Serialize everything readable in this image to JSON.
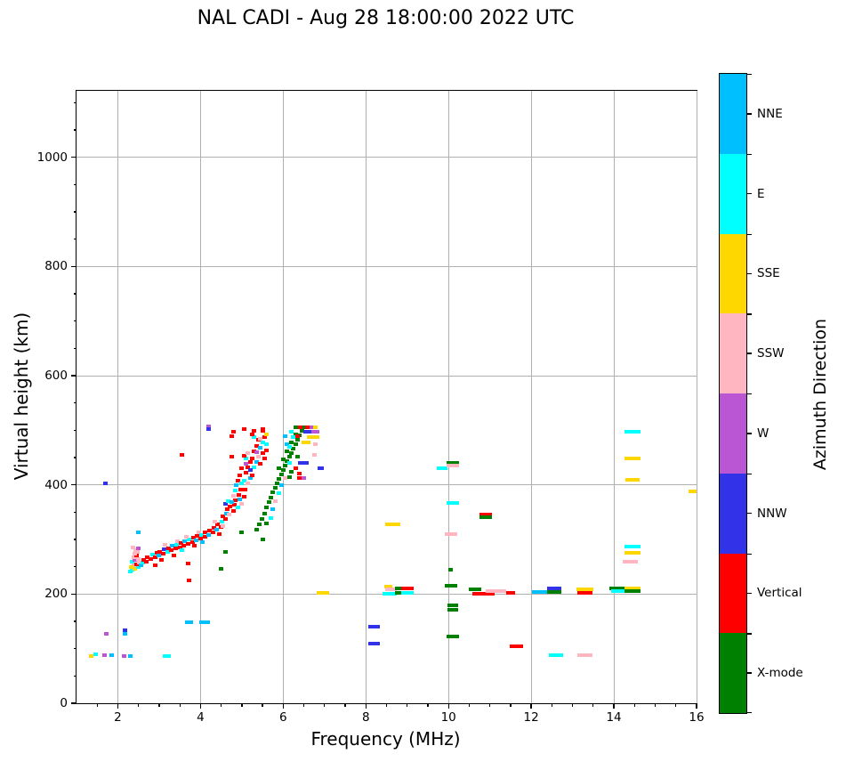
{
  "title": "NAL CADI - Aug 28 18:00:00 2022 UTC",
  "chart_data": {
    "type": "scatter",
    "title": "NAL CADI - Aug 28 18:00:00 2022 UTC",
    "xlabel": "Frequency (MHz)",
    "ylabel": "Virtual height (km)",
    "xlim": [
      1,
      16
    ],
    "ylim": [
      0,
      1122
    ],
    "x_ticks": [
      2,
      4,
      6,
      8,
      10,
      12,
      14,
      16
    ],
    "y_ticks": [
      0,
      200,
      400,
      600,
      800,
      1000
    ],
    "x_minor_step": 0.5,
    "y_minor_step": 50,
    "grid": true,
    "grid_color": "#b0b0b0",
    "marker": "small horizontal rectangle",
    "colorbar": {
      "label": "Azimuth Direction",
      "categories_top_to_bottom": [
        {
          "code": "NNE",
          "label": "NNE"
        },
        {
          "code": "E",
          "label": "E"
        },
        {
          "code": "SSE",
          "label": "SSE"
        },
        {
          "code": "SSW",
          "label": "SSW"
        },
        {
          "code": "W",
          "label": "W"
        },
        {
          "code": "NNW",
          "label": "NNW"
        },
        {
          "code": "V",
          "label": "Vertical"
        },
        {
          "code": "X",
          "label": "X-mode"
        }
      ]
    },
    "colors": {
      "NNE": "#00BFFF",
      "E": "#00FFFF",
      "SSE": "#FFD700",
      "SSW": "#FFB6C1",
      "W": "#BA55D3",
      "NNW": "#3232E8",
      "V": "#FF0000",
      "X": "#008000"
    },
    "point_format": "[frequency_MHz, virtual_height_km, direction_code, optional_width_MHz]",
    "points": [
      [
        1.35,
        87,
        "SSE"
      ],
      [
        1.46,
        90,
        "E"
      ],
      [
        1.67,
        88,
        "W"
      ],
      [
        1.85,
        88,
        "NNE"
      ],
      [
        1.72,
        128,
        "W"
      ],
      [
        2.17,
        134,
        "NNW"
      ],
      [
        2.17,
        127,
        "NNE"
      ],
      [
        2.15,
        87,
        "W"
      ],
      [
        2.3,
        86,
        "NNE"
      ],
      [
        3.18,
        86,
        "E",
        0.2
      ],
      [
        3.72,
        148,
        "NNE",
        0.2
      ],
      [
        4.1,
        148,
        "NNE",
        0.25
      ],
      [
        1.7,
        402,
        "NNW"
      ],
      [
        2.5,
        313,
        "NNE"
      ],
      [
        2.35,
        244,
        "E"
      ],
      [
        2.42,
        247,
        "SSE"
      ],
      [
        2.5,
        250,
        "E"
      ],
      [
        2.38,
        252,
        "SSW"
      ],
      [
        2.45,
        255,
        "V"
      ],
      [
        2.52,
        257,
        "SSW"
      ],
      [
        2.35,
        259,
        "E"
      ],
      [
        2.42,
        262,
        "W"
      ],
      [
        2.5,
        264,
        "SSW"
      ],
      [
        2.38,
        267,
        "SSW"
      ],
      [
        2.45,
        270,
        "V"
      ],
      [
        2.4,
        274,
        "SSW"
      ],
      [
        2.48,
        277,
        "SSW"
      ],
      [
        2.43,
        281,
        "SSW"
      ],
      [
        2.5,
        283,
        "W"
      ],
      [
        2.37,
        285,
        "SSW"
      ],
      [
        2.55,
        252,
        "NNE"
      ],
      [
        2.6,
        258,
        "E"
      ],
      [
        2.33,
        249,
        "SSE"
      ],
      [
        2.3,
        242,
        "E"
      ],
      [
        2.62,
        262,
        "V"
      ],
      [
        2.7,
        260,
        "V"
      ],
      [
        2.72,
        268,
        "V"
      ],
      [
        2.8,
        265,
        "V"
      ],
      [
        2.85,
        272,
        "E"
      ],
      [
        2.9,
        268,
        "V"
      ],
      [
        2.95,
        275,
        "V"
      ],
      [
        3.0,
        270,
        "NNE"
      ],
      [
        3.02,
        278,
        "V"
      ],
      [
        3.1,
        274,
        "V"
      ],
      [
        3.12,
        282,
        "NNW"
      ],
      [
        3.2,
        277,
        "E"
      ],
      [
        3.22,
        284,
        "V"
      ],
      [
        3.3,
        280,
        "V"
      ],
      [
        3.32,
        288,
        "NNE"
      ],
      [
        3.4,
        283,
        "V"
      ],
      [
        3.42,
        291,
        "E"
      ],
      [
        3.45,
        297,
        "SSW"
      ],
      [
        3.5,
        286,
        "V"
      ],
      [
        3.52,
        293,
        "V"
      ],
      [
        3.6,
        289,
        "V"
      ],
      [
        3.62,
        297,
        "NNE"
      ],
      [
        3.7,
        292,
        "V"
      ],
      [
        3.72,
        300,
        "E"
      ],
      [
        3.8,
        295,
        "V"
      ],
      [
        3.82,
        303,
        "V"
      ],
      [
        3.9,
        298,
        "NNE"
      ],
      [
        3.92,
        306,
        "V"
      ],
      [
        3.95,
        313,
        "SSW"
      ],
      [
        4.0,
        301,
        "V"
      ],
      [
        4.02,
        309,
        "E"
      ],
      [
        4.1,
        305,
        "V"
      ],
      [
        4.12,
        313,
        "V"
      ],
      [
        4.2,
        309,
        "NNE"
      ],
      [
        4.22,
        317,
        "V"
      ],
      [
        2.9,
        253,
        "V"
      ],
      [
        3.7,
        256,
        "V"
      ],
      [
        3.73,
        225,
        "V"
      ],
      [
        4.5,
        246,
        "X"
      ],
      [
        4.6,
        278,
        "X"
      ],
      [
        3.05,
        262,
        "V"
      ],
      [
        3.35,
        270,
        "V"
      ],
      [
        3.55,
        280,
        "E"
      ],
      [
        3.85,
        288,
        "V"
      ],
      [
        4.05,
        295,
        "NNE"
      ],
      [
        3.15,
        290,
        "SSW"
      ],
      [
        3.65,
        305,
        "SSW"
      ],
      [
        4.3,
        313,
        "V"
      ],
      [
        4.32,
        322,
        "V"
      ],
      [
        4.4,
        318,
        "NNE"
      ],
      [
        4.42,
        327,
        "V"
      ],
      [
        4.35,
        333,
        "SSW"
      ],
      [
        4.5,
        323,
        "V"
      ],
      [
        4.52,
        332,
        "E"
      ],
      [
        4.55,
        342,
        "V"
      ],
      [
        4.6,
        337,
        "V"
      ],
      [
        4.62,
        348,
        "NNE"
      ],
      [
        4.65,
        355,
        "V"
      ],
      [
        4.7,
        345,
        "SSW"
      ],
      [
        4.72,
        360,
        "V"
      ],
      [
        4.6,
        365,
        "NNW"
      ],
      [
        4.68,
        370,
        "E"
      ],
      [
        4.8,
        352,
        "V"
      ],
      [
        4.82,
        363,
        "V"
      ],
      [
        4.85,
        372,
        "V"
      ],
      [
        4.9,
        358,
        "E"
      ],
      [
        4.92,
        382,
        "V"
      ],
      [
        4.95,
        373,
        "NNE"
      ],
      [
        5.0,
        366,
        "SSW"
      ],
      [
        4.97,
        392,
        "V"
      ],
      [
        4.87,
        400,
        "NNE"
      ],
      [
        4.8,
        380,
        "SSW"
      ],
      [
        4.9,
        408,
        "V"
      ],
      [
        5.0,
        403,
        "E"
      ],
      [
        4.95,
        417,
        "V"
      ],
      [
        5.05,
        378,
        "V"
      ],
      [
        5.08,
        392,
        "V"
      ],
      [
        5.05,
        408,
        "E"
      ],
      [
        5.1,
        422,
        "V"
      ],
      [
        5.15,
        403,
        "SSW"
      ],
      [
        5.15,
        432,
        "V"
      ],
      [
        5.2,
        413,
        "NNE"
      ],
      [
        5.2,
        442,
        "V"
      ],
      [
        5.1,
        448,
        "E"
      ],
      [
        5.05,
        453,
        "V"
      ],
      [
        5.15,
        458,
        "SSW"
      ],
      [
        5.25,
        418,
        "V"
      ],
      [
        5.3,
        432,
        "E"
      ],
      [
        5.25,
        448,
        "V"
      ],
      [
        5.3,
        462,
        "V"
      ],
      [
        5.35,
        442,
        "NNE"
      ],
      [
        5.35,
        472,
        "V"
      ],
      [
        5.4,
        452,
        "SSW"
      ],
      [
        5.4,
        482,
        "V"
      ],
      [
        5.3,
        488,
        "E"
      ],
      [
        5.25,
        493,
        "V"
      ],
      [
        5.45,
        438,
        "V"
      ],
      [
        5.5,
        458,
        "V"
      ],
      [
        5.45,
        468,
        "NNE"
      ],
      [
        5.5,
        478,
        "E"
      ],
      [
        5.55,
        448,
        "V"
      ],
      [
        5.55,
        488,
        "V"
      ],
      [
        5.5,
        499,
        "V"
      ],
      [
        5.6,
        463,
        "V"
      ],
      [
        5.6,
        492,
        "SSE"
      ],
      [
        4.75,
        452,
        "V"
      ],
      [
        3.55,
        455,
        "V"
      ],
      [
        4.2,
        507,
        "W"
      ],
      [
        4.2,
        502,
        "NNW"
      ],
      [
        4.75,
        490,
        "V"
      ],
      [
        4.8,
        498,
        "V"
      ],
      [
        5.05,
        502,
        "V"
      ],
      [
        5.3,
        499,
        "V"
      ],
      [
        5.5,
        502,
        "V"
      ],
      [
        5.0,
        313,
        "X"
      ],
      [
        4.45,
        310,
        "V"
      ],
      [
        4.55,
        325,
        "SSW"
      ],
      [
        4.75,
        368,
        "NNE"
      ],
      [
        4.85,
        390,
        "E"
      ],
      [
        5.0,
        430,
        "V"
      ],
      [
        5.1,
        438,
        "W"
      ],
      [
        5.2,
        428,
        "NNW"
      ],
      [
        5.35,
        460,
        "W"
      ],
      [
        5.45,
        485,
        "SSW"
      ],
      [
        5.6,
        475,
        "E"
      ],
      [
        5.35,
        318,
        "X"
      ],
      [
        5.42,
        328,
        "X"
      ],
      [
        5.48,
        338,
        "X"
      ],
      [
        5.55,
        348,
        "X"
      ],
      [
        5.6,
        358,
        "X"
      ],
      [
        5.65,
        368,
        "X"
      ],
      [
        5.7,
        377,
        "X"
      ],
      [
        5.75,
        386,
        "X"
      ],
      [
        5.8,
        395,
        "X"
      ],
      [
        5.85,
        403,
        "X"
      ],
      [
        5.9,
        411,
        "X"
      ],
      [
        5.95,
        419,
        "X"
      ],
      [
        6.0,
        427,
        "X"
      ],
      [
        6.05,
        435,
        "X"
      ],
      [
        6.1,
        443,
        "X"
      ],
      [
        6.15,
        451,
        "X"
      ],
      [
        6.2,
        459,
        "X"
      ],
      [
        6.25,
        467,
        "X"
      ],
      [
        6.3,
        475,
        "X"
      ],
      [
        6.35,
        483,
        "X"
      ],
      [
        6.4,
        491,
        "X"
      ],
      [
        6.45,
        499,
        "X"
      ],
      [
        6.5,
        505,
        "X"
      ],
      [
        5.9,
        430,
        "X"
      ],
      [
        6.0,
        447,
        "X"
      ],
      [
        6.1,
        462,
        "X"
      ],
      [
        6.2,
        478,
        "X"
      ],
      [
        6.3,
        492,
        "X"
      ],
      [
        6.2,
        424,
        "X"
      ],
      [
        6.15,
        415,
        "X"
      ],
      [
        6.35,
        452,
        "X"
      ],
      [
        5.6,
        330,
        "X"
      ],
      [
        5.5,
        300,
        "X"
      ],
      [
        5.7,
        340,
        "E"
      ],
      [
        5.75,
        355,
        "NNE"
      ],
      [
        5.8,
        370,
        "SSW"
      ],
      [
        5.9,
        385,
        "E"
      ],
      [
        5.95,
        400,
        "NNE"
      ],
      [
        6.05,
        412,
        "SSW"
      ],
      [
        6.05,
        490,
        "NNE"
      ],
      [
        6.1,
        475,
        "NNE"
      ],
      [
        6.15,
        440,
        "E"
      ],
      [
        6.2,
        498,
        "E"
      ],
      [
        6.15,
        470,
        "E"
      ],
      [
        6.3,
        430,
        "V"
      ],
      [
        6.35,
        490,
        "V"
      ],
      [
        6.4,
        420,
        "V"
      ],
      [
        6.4,
        412,
        "V"
      ],
      [
        6.5,
        412,
        "W"
      ],
      [
        6.5,
        440,
        "NNW",
        0.25
      ],
      [
        6.6,
        497,
        "NNW",
        0.22
      ],
      [
        6.68,
        505,
        "W",
        0.18
      ],
      [
        6.78,
        497,
        "W",
        0.18
      ],
      [
        6.58,
        505,
        "V"
      ],
      [
        6.78,
        505,
        "SSE"
      ],
      [
        6.72,
        487,
        "SSE",
        0.3
      ],
      [
        6.78,
        475,
        "SSW"
      ],
      [
        6.75,
        455,
        "SSW"
      ],
      [
        6.42,
        440,
        "NNW"
      ],
      [
        6.3,
        505,
        "X"
      ],
      [
        6.42,
        505,
        "V"
      ],
      [
        6.25,
        487,
        "E"
      ],
      [
        6.55,
        478,
        "SSE",
        0.2
      ],
      [
        6.9,
        430,
        "NNW",
        0.15
      ],
      [
        6.97,
        203,
        "SSE",
        0.3
      ],
      [
        8.2,
        140,
        "NNW",
        0.28
      ],
      [
        8.2,
        110,
        "NNW",
        0.28
      ],
      [
        8.65,
        328,
        "SSE",
        0.35
      ],
      [
        8.55,
        213,
        "SSE",
        0.2
      ],
      [
        8.6,
        208,
        "SSW",
        0.28
      ],
      [
        8.58,
        201,
        "E",
        0.35
      ],
      [
        8.85,
        210,
        "X",
        0.3
      ],
      [
        8.85,
        202,
        "X",
        0.3
      ],
      [
        9.0,
        211,
        "V",
        0.3
      ],
      [
        9.0,
        203,
        "E",
        0.3
      ],
      [
        9.85,
        431,
        "E",
        0.25
      ],
      [
        10.1,
        441,
        "X",
        0.3
      ],
      [
        10.1,
        436,
        "SSW",
        0.3
      ],
      [
        10.1,
        367,
        "E",
        0.3
      ],
      [
        10.07,
        310,
        "SSW",
        0.3
      ],
      [
        10.05,
        245,
        "X",
        0.12
      ],
      [
        10.07,
        215,
        "X",
        0.3
      ],
      [
        10.1,
        180,
        "X",
        0.25
      ],
      [
        10.1,
        172,
        "X",
        0.25
      ],
      [
        10.1,
        123,
        "X",
        0.3
      ],
      [
        10.9,
        346,
        "V",
        0.3
      ],
      [
        10.9,
        341,
        "X",
        0.3
      ],
      [
        10.65,
        208,
        "X",
        0.3
      ],
      [
        10.85,
        201,
        "V",
        0.55
      ],
      [
        11.15,
        206,
        "SSW",
        0.5
      ],
      [
        11.5,
        203,
        "V",
        0.2
      ],
      [
        11.65,
        105,
        "V",
        0.32
      ],
      [
        12.2,
        204,
        "NNE",
        0.35
      ],
      [
        12.55,
        210,
        "NNW",
        0.35
      ],
      [
        12.55,
        204,
        "X",
        0.35
      ],
      [
        12.6,
        88,
        "E",
        0.36
      ],
      [
        13.3,
        208,
        "SSE",
        0.4
      ],
      [
        13.3,
        203,
        "V",
        0.38
      ],
      [
        13.3,
        88,
        "SSW",
        0.38
      ],
      [
        14.1,
        211,
        "X",
        0.4
      ],
      [
        14.1,
        205,
        "E",
        0.35
      ],
      [
        14.45,
        211,
        "SSE",
        0.38
      ],
      [
        14.45,
        205,
        "X",
        0.38
      ],
      [
        14.45,
        498,
        "E",
        0.4
      ],
      [
        14.45,
        448,
        "SSE",
        0.38
      ],
      [
        14.45,
        410,
        "SSE",
        0.36
      ],
      [
        14.45,
        287,
        "E",
        0.4
      ],
      [
        14.45,
        275,
        "SSE",
        0.4
      ],
      [
        14.4,
        260,
        "SSW",
        0.36
      ],
      [
        15.9,
        388,
        "SSE",
        0.18
      ]
    ]
  }
}
